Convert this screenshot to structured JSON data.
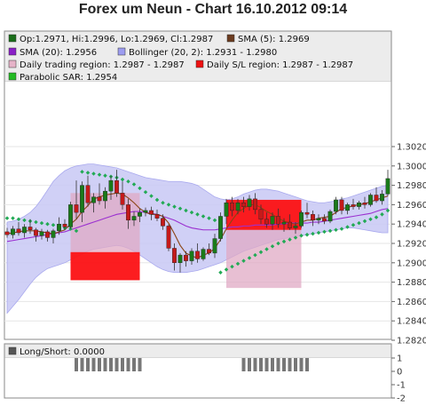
{
  "title": "Forex um Neun - Chart 16.10.2012 09:14",
  "legend": [
    {
      "text": "Op:1.2971, Hi:1.2996, Lo:1.2969, Cl:1.2987",
      "color": "#1a6e1a"
    },
    {
      "text": "SMA (5): 1.2969",
      "color": "#6b3b1f"
    },
    {
      "text": "SMA (20): 1.2956",
      "color": "#8a1fc7"
    },
    {
      "text": "Bollinger (20, 2): 1.2931 - 1.2980",
      "color": "#9c9cf0"
    },
    {
      "text": "Daily trading region: 1.2987 - 1.2987",
      "color": "#e6b3c8"
    },
    {
      "text": "Daily S/L region: 1.2987 - 1.2987",
      "color": "#ee1111"
    },
    {
      "text": "Parabolic SAR: 1.2954",
      "color": "#22bb22"
    }
  ],
  "sub_legend": {
    "text": "Long/Short: 0.0000",
    "color": "#555555"
  },
  "colors": {
    "bull": "#1a7a1a",
    "bear": "#c41a1a",
    "sma5": "#8b4513",
    "sma20": "#9b30d0",
    "boll_fill": "#c8c8f5",
    "sar": "#22aa55",
    "trade_region": "#e0aac4",
    "sl_region": "#ff0000"
  },
  "chart_data": [
    {
      "type": "candlestick",
      "y_ticks": [
        "1.3020",
        "1.3000",
        "1.2980",
        "1.2960",
        "1.2940",
        "1.2920",
        "1.2900",
        "1.2880",
        "1.2860",
        "1.2840",
        "1.2820"
      ],
      "ylim": [
        1.282,
        1.303
      ],
      "grid": true,
      "candles": [
        [
          1.2932,
          1.2936,
          1.2926,
          1.2929
        ],
        [
          1.2929,
          1.2938,
          1.2925,
          1.2935
        ],
        [
          1.2935,
          1.2942,
          1.2928,
          1.2931
        ],
        [
          1.2931,
          1.294,
          1.2926,
          1.2937
        ],
        [
          1.2937,
          1.2945,
          1.293,
          1.2934
        ],
        [
          1.2934,
          1.2936,
          1.2922,
          1.2928
        ],
        [
          1.2928,
          1.2935,
          1.2924,
          1.2932
        ],
        [
          1.2932,
          1.2934,
          1.2922,
          1.2926
        ],
        [
          1.2926,
          1.2935,
          1.292,
          1.2933
        ],
        [
          1.2933,
          1.2947,
          1.2929,
          1.294
        ],
        [
          1.294,
          1.2945,
          1.2934,
          1.2937
        ],
        [
          1.2937,
          1.2963,
          1.2935,
          1.296
        ],
        [
          1.296,
          1.2985,
          1.2945,
          1.2952
        ],
        [
          1.2952,
          1.2984,
          1.2942,
          1.298
        ],
        [
          1.298,
          1.299,
          1.2958,
          1.2962
        ],
        [
          1.2962,
          1.2972,
          1.2952,
          1.2968
        ],
        [
          1.2968,
          1.2982,
          1.296,
          1.2964
        ],
        [
          1.2964,
          1.2978,
          1.2956,
          1.2974
        ],
        [
          1.2974,
          1.299,
          1.2965,
          1.2985
        ],
        [
          1.2985,
          1.2996,
          1.2968,
          1.2972
        ],
        [
          1.2972,
          1.2984,
          1.2955,
          1.296
        ],
        [
          1.296,
          1.2966,
          1.2935,
          1.2944
        ],
        [
          1.2944,
          1.2953,
          1.2938,
          1.2948
        ],
        [
          1.2948,
          1.2956,
          1.2942,
          1.2952
        ],
        [
          1.2952,
          1.2957,
          1.2948,
          1.2954
        ],
        [
          1.2954,
          1.2958,
          1.2944,
          1.295
        ],
        [
          1.295,
          1.2955,
          1.2943,
          1.2946
        ],
        [
          1.2946,
          1.295,
          1.2934,
          1.2938
        ],
        [
          1.2938,
          1.294,
          1.2912,
          1.2915
        ],
        [
          1.2915,
          1.292,
          1.2892,
          1.29
        ],
        [
          1.29,
          1.291,
          1.289,
          1.2908
        ],
        [
          1.2908,
          1.2912,
          1.2896,
          1.2902
        ],
        [
          1.2902,
          1.2915,
          1.2898,
          1.2912
        ],
        [
          1.2912,
          1.292,
          1.29,
          1.2904
        ],
        [
          1.2904,
          1.2916,
          1.2902,
          1.2914
        ],
        [
          1.2914,
          1.292,
          1.2908,
          1.291
        ],
        [
          1.291,
          1.293,
          1.2905,
          1.2925
        ],
        [
          1.2925,
          1.2952,
          1.2922,
          1.2948
        ],
        [
          1.2948,
          1.2966,
          1.294,
          1.2962
        ],
        [
          1.2962,
          1.2968,
          1.2948,
          1.2954
        ],
        [
          1.2954,
          1.2966,
          1.295,
          1.2962
        ],
        [
          1.2962,
          1.2968,
          1.2952,
          1.2958
        ],
        [
          1.2958,
          1.297,
          1.2954,
          1.2966
        ],
        [
          1.2966,
          1.2972,
          1.295,
          1.2955
        ],
        [
          1.2955,
          1.296,
          1.294,
          1.2945
        ],
        [
          1.2945,
          1.2952,
          1.2936,
          1.294
        ],
        [
          1.294,
          1.2952,
          1.2934,
          1.2948
        ],
        [
          1.2948,
          1.2956,
          1.2936,
          1.294
        ],
        [
          1.294,
          1.2946,
          1.2932,
          1.2942
        ],
        [
          1.2942,
          1.295,
          1.2934,
          1.2936
        ],
        [
          1.2936,
          1.2942,
          1.293,
          1.2938
        ],
        [
          1.2938,
          1.2954,
          1.2936,
          1.2952
        ],
        [
          1.2952,
          1.2962,
          1.2946,
          1.295
        ],
        [
          1.295,
          1.2954,
          1.2938,
          1.2944
        ],
        [
          1.2944,
          1.295,
          1.294,
          1.2946
        ],
        [
          1.2946,
          1.295,
          1.294,
          1.2943
        ],
        [
          1.2943,
          1.2955,
          1.2941,
          1.2953
        ],
        [
          1.2953,
          1.2968,
          1.295,
          1.2965
        ],
        [
          1.2965,
          1.2968,
          1.295,
          1.2954
        ],
        [
          1.2954,
          1.2962,
          1.295,
          1.296
        ],
        [
          1.296,
          1.2966,
          1.2955,
          1.2958
        ],
        [
          1.2958,
          1.2964,
          1.2955,
          1.2962
        ],
        [
          1.2962,
          1.2968,
          1.2956,
          1.296
        ],
        [
          1.296,
          1.2972,
          1.2958,
          1.297
        ],
        [
          1.297,
          1.2978,
          1.2962,
          1.2964
        ],
        [
          1.2964,
          1.2975,
          1.296,
          1.2971
        ],
        [
          1.2971,
          1.2996,
          1.2969,
          1.2987
        ]
      ],
      "sma5": [
        1.293,
        1.2931,
        1.2932,
        1.2933,
        1.2933,
        1.2933,
        1.2932,
        1.2931,
        1.293,
        1.2932,
        1.2934,
        1.294,
        1.2945,
        1.2953,
        1.2959,
        1.2966,
        1.2968,
        1.297,
        1.2971,
        1.2972,
        1.2971,
        1.2967,
        1.2962,
        1.2956,
        1.2952,
        1.295,
        1.295,
        1.2948,
        1.2941,
        1.293,
        1.2918,
        1.291,
        1.2907,
        1.2905,
        1.2908,
        1.291,
        1.2915,
        1.2924,
        1.2935,
        1.2944,
        1.2952,
        1.2956,
        1.296,
        1.296,
        1.2957,
        1.2953,
        1.295,
        1.2946,
        1.2943,
        1.2941,
        1.294,
        1.2942,
        1.2944,
        1.2944,
        1.2946,
        1.2947,
        1.2948,
        1.2952,
        1.2956,
        1.2957,
        1.2959,
        1.296,
        1.2961,
        1.2963,
        1.2965,
        1.2967,
        1.2969
      ],
      "sma20": [
        1.2922,
        1.2923,
        1.2924,
        1.2925,
        1.2926,
        1.2927,
        1.2928,
        1.2929,
        1.293,
        1.2931,
        1.2932,
        1.2934,
        1.2936,
        1.2938,
        1.294,
        1.2942,
        1.2944,
        1.2946,
        1.2948,
        1.295,
        1.2951,
        1.2952,
        1.2953,
        1.2953,
        1.2952,
        1.2951,
        1.295,
        1.2948,
        1.2946,
        1.2944,
        1.2941,
        1.2938,
        1.2936,
        1.2935,
        1.2934,
        1.2934,
        1.2934,
        1.2935,
        1.2936,
        1.2937,
        1.2937,
        1.2938,
        1.2938,
        1.2939,
        1.2939,
        1.2939,
        1.2939,
        1.294,
        1.294,
        1.2941,
        1.2941,
        1.2941,
        1.2941,
        1.2942,
        1.2942,
        1.2943,
        1.2944,
        1.2945,
        1.2946,
        1.2947,
        1.2948,
        1.2949,
        1.295,
        1.2951,
        1.2953,
        1.2955,
        1.2956
      ],
      "boll_upper": [
        1.2942,
        1.2943,
        1.2945,
        1.2948,
        1.2952,
        1.2958,
        1.2966,
        1.2975,
        1.2984,
        1.299,
        1.2995,
        1.2998,
        1.3,
        1.3001,
        1.3002,
        1.3002,
        1.3001,
        1.3,
        1.2999,
        1.2998,
        1.2996,
        1.2994,
        1.2992,
        1.299,
        1.2988,
        1.2987,
        1.2986,
        1.2985,
        1.2984,
        1.2984,
        1.2984,
        1.2983,
        1.2982,
        1.298,
        1.2976,
        1.2972,
        1.2968,
        1.2966,
        1.2965,
        1.2966,
        1.2968,
        1.2971,
        1.2973,
        1.2975,
        1.2976,
        1.2976,
        1.2975,
        1.2974,
        1.2972,
        1.297,
        1.2968,
        1.2966,
        1.2964,
        1.2963,
        1.2962,
        1.2962,
        1.2963,
        1.2964,
        1.2966,
        1.2967,
        1.2969,
        1.2971,
        1.2973,
        1.2975,
        1.2977,
        1.2979,
        1.298
      ],
      "boll_lower": [
        1.2848,
        1.2855,
        1.2862,
        1.287,
        1.2878,
        1.2885,
        1.289,
        1.2894,
        1.2896,
        1.2898,
        1.29,
        1.2903,
        1.2906,
        1.2909,
        1.2912,
        1.2914,
        1.2915,
        1.2916,
        1.2917,
        1.2918,
        1.2917,
        1.2915,
        1.2912,
        1.2908,
        1.2904,
        1.29,
        1.2896,
        1.2893,
        1.2891,
        1.289,
        1.289,
        1.289,
        1.2891,
        1.2892,
        1.2894,
        1.2896,
        1.2898,
        1.29,
        1.2903,
        1.2906,
        1.2909,
        1.2912,
        1.2914,
        1.2916,
        1.2918,
        1.292,
        1.2922,
        1.2924,
        1.2925,
        1.2926,
        1.2927,
        1.2928,
        1.2929,
        1.293,
        1.2931,
        1.2932,
        1.2933,
        1.2934,
        1.2935,
        1.2936,
        1.2936,
        1.2935,
        1.2934,
        1.2933,
        1.2932,
        1.2931,
        1.2931
      ],
      "sar": [
        1.2946,
        1.2946,
        1.2945,
        1.2944,
        1.2943,
        1.2942,
        1.2941,
        1.294,
        1.2939,
        1.2938,
        1.2936,
        1.2935,
        1.2933,
        1.2994,
        1.2993,
        1.2992,
        1.2991,
        1.299,
        1.2989,
        1.2988,
        1.2986,
        1.2984,
        1.2981,
        1.2977,
        1.2973,
        1.2969,
        1.2965,
        1.2962,
        1.296,
        1.2958,
        1.2956,
        1.2954,
        1.2952,
        1.295,
        1.2948,
        1.2946,
        1.2944,
        1.289,
        1.2893,
        1.2896,
        1.2899,
        1.2902,
        1.2905,
        1.2908,
        1.2911,
        1.2914,
        1.2917,
        1.292,
        1.2922,
        1.2924,
        1.2926,
        1.2928,
        1.2929,
        1.293,
        1.2931,
        1.2932,
        1.2933,
        1.2934,
        1.2935,
        1.2937,
        1.2939,
        1.2941,
        1.2943,
        1.2945,
        1.2947,
        1.295,
        1.2954
      ],
      "trading_regions": [
        [
          11,
          23,
          1.2882,
          1.2972
        ],
        [
          38,
          51,
          1.2874,
          1.2965
        ]
      ],
      "sl_regions": [
        [
          11,
          23,
          1.2882,
          1.2911
        ],
        [
          38,
          51,
          1.2934,
          1.2965
        ]
      ]
    },
    {
      "type": "bar",
      "name": "Long/Short",
      "y_ticks": [
        "1",
        "0",
        "-1",
        "-2"
      ],
      "ylim": [
        -2,
        1
      ],
      "bars": [
        [
          12,
          23,
          -1
        ],
        [
          41,
          52,
          -1
        ]
      ]
    }
  ]
}
